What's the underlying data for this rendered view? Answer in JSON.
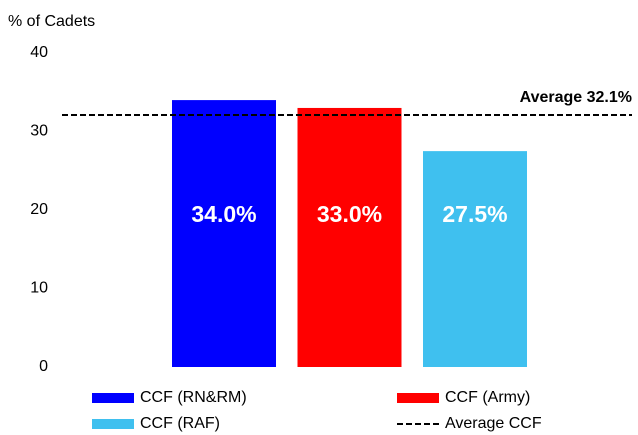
{
  "chart_data": {
    "type": "bar",
    "y_label": "% of Cadets",
    "ylim": [
      0,
      40
    ],
    "yticks": [
      0,
      10,
      20,
      30,
      40
    ],
    "grid": false,
    "series": [
      {
        "name": "CCF (RN&RM)",
        "color": "#0000ff",
        "values": [
          34.0
        ],
        "value_labels": [
          "34.0%"
        ]
      },
      {
        "name": "CCF (Army)",
        "color": "#ff0000",
        "values": [
          33.0
        ],
        "value_labels": [
          "33.0%"
        ]
      },
      {
        "name": "CCF (RAF)",
        "color": "#3fc0ef",
        "values": [
          27.5
        ],
        "value_labels": [
          "27.5%"
        ]
      }
    ],
    "reference_line": {
      "name": "Average CCF",
      "value": 32.1,
      "label": "Average 32.1%",
      "color": "#000000",
      "dashed": true
    }
  }
}
